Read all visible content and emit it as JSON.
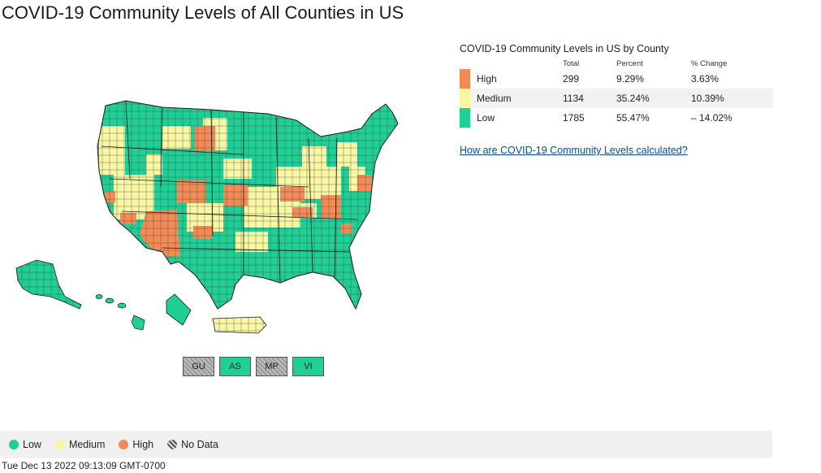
{
  "page": {
    "title": "COVID-19 Community Levels of All Counties in US",
    "timestamp": "Tue Dec 13 2022 09:13:09 GMT-0700"
  },
  "colors": {
    "low": "#1fcf95",
    "medium": "#f8f7a4",
    "high": "#f38b56",
    "no_data": "#aaaaaa",
    "border": "#1a1a1a",
    "link": "#0b4f8a"
  },
  "summary_table": {
    "title": "COVID-19 Community Levels in US by County",
    "headers": [
      "Total",
      "Percent",
      "% Change"
    ],
    "rows": [
      {
        "level": "High",
        "total": "299",
        "percent": "9.29%",
        "change": "3.63%",
        "color": "#f38b56"
      },
      {
        "level": "Medium",
        "total": "1134",
        "percent": "35.24%",
        "change": "10.39%",
        "color": "#f8f7a4"
      },
      {
        "level": "Low",
        "total": "1785",
        "percent": "55.47%",
        "change": "– 14.02%",
        "color": "#1fcf95"
      }
    ],
    "link_text": "How are COVID-19 Community Levels calculated?"
  },
  "territories": [
    {
      "code": "GU",
      "status": "no-data"
    },
    {
      "code": "AS",
      "status": "low"
    },
    {
      "code": "MP",
      "status": "no-data"
    },
    {
      "code": "VI",
      "status": "low"
    }
  ],
  "legend": {
    "low": "Low",
    "medium": "Medium",
    "high": "High",
    "no_data": "No Data"
  }
}
